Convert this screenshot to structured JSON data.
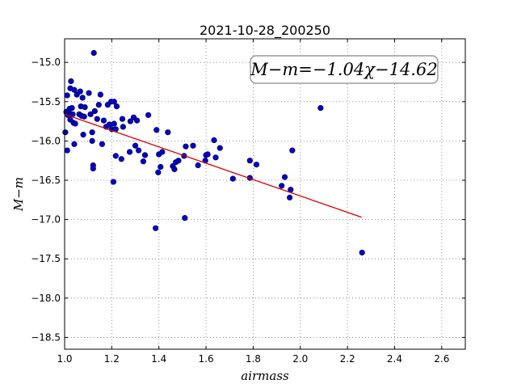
{
  "colors": {
    "points": "#0000cc",
    "fit": "#dd0000",
    "grid": "#777777"
  },
  "chart_data": {
    "type": "scatter",
    "title": "2021-10-28_200250",
    "xlabel": "airmass",
    "ylabel": "M−m",
    "annotation": "M−m=−1.04χ−14.62",
    "xlim": [
      1.0,
      2.7
    ],
    "ylim": [
      -18.65,
      -14.7
    ],
    "y_inverted": true,
    "grid": true,
    "x_ticks": [
      1.0,
      1.2,
      1.4,
      1.6,
      1.8,
      2.0,
      2.2,
      2.4,
      2.6
    ],
    "x_tick_labels": [
      "1.0",
      "1.2",
      "1.4",
      "1.6",
      "1.8",
      "2.0",
      "2.2",
      "2.4",
      "2.6"
    ],
    "y_ticks": [
      -15.0,
      -15.5,
      -16.0,
      -16.5,
      -17.0,
      -17.5,
      -18.0,
      -18.5
    ],
    "y_tick_labels": [
      "−15.0",
      "−15.5",
      "−16.0",
      "−16.5",
      "−17.0",
      "−17.5",
      "−18.0",
      "−18.5"
    ],
    "fit_line": {
      "slope": -1.04,
      "intercept": -14.62,
      "x_range": [
        1.0,
        2.26
      ]
    },
    "points": [
      [
        1.003,
        -15.89
      ],
      [
        1.007,
        -15.63
      ],
      [
        1.011,
        -15.42
      ],
      [
        1.011,
        -16.12
      ],
      [
        1.014,
        -15.67
      ],
      [
        1.017,
        -15.62
      ],
      [
        1.021,
        -15.59
      ],
      [
        1.024,
        -15.33
      ],
      [
        1.024,
        -15.73
      ],
      [
        1.027,
        -15.24
      ],
      [
        1.031,
        -15.58
      ],
      [
        1.034,
        -15.66
      ],
      [
        1.038,
        -15.77
      ],
      [
        1.041,
        -15.35
      ],
      [
        1.041,
        -16.04
      ],
      [
        1.045,
        -15.78
      ],
      [
        1.052,
        -15.41
      ],
      [
        1.062,
        -15.66
      ],
      [
        1.066,
        -15.37
      ],
      [
        1.069,
        -15.56
      ],
      [
        1.072,
        -15.68
      ],
      [
        1.076,
        -15.45
      ],
      [
        1.079,
        -15.92
      ],
      [
        1.083,
        -15.69
      ],
      [
        1.086,
        -15.57
      ],
      [
        1.103,
        -15.39
      ],
      [
        1.11,
        -15.66
      ],
      [
        1.117,
        -15.89
      ],
      [
        1.117,
        -16.0
      ],
      [
        1.121,
        -16.31
      ],
      [
        1.121,
        -16.35
      ],
      [
        1.124,
        -14.88
      ],
      [
        1.128,
        -15.62
      ],
      [
        1.138,
        -15.72
      ],
      [
        1.145,
        -15.54
      ],
      [
        1.152,
        -15.41
      ],
      [
        1.159,
        -16.04
      ],
      [
        1.166,
        -15.74
      ],
      [
        1.176,
        -15.82
      ],
      [
        1.183,
        -15.54
      ],
      [
        1.19,
        -15.79
      ],
      [
        1.197,
        -15.5
      ],
      [
        1.2,
        -15.85
      ],
      [
        1.207,
        -16.52
      ],
      [
        1.21,
        -15.78
      ],
      [
        1.21,
        -15.5
      ],
      [
        1.217,
        -16.19
      ],
      [
        1.217,
        -15.85
      ],
      [
        1.221,
        -15.56
      ],
      [
        1.241,
        -16.23
      ],
      [
        1.245,
        -15.72
      ],
      [
        1.248,
        -15.82
      ],
      [
        1.276,
        -16.14
      ],
      [
        1.279,
        -15.75
      ],
      [
        1.293,
        -15.7
      ],
      [
        1.3,
        -16.06
      ],
      [
        1.307,
        -15.74
      ],
      [
        1.314,
        -16.12
      ],
      [
        1.334,
        -16.26
      ],
      [
        1.341,
        -16.18
      ],
      [
        1.355,
        -15.67
      ],
      [
        1.386,
        -17.11
      ],
      [
        1.39,
        -15.86
      ],
      [
        1.397,
        -16.4
      ],
      [
        1.4,
        -16.17
      ],
      [
        1.407,
        -16.33
      ],
      [
        1.414,
        -16.14
      ],
      [
        1.438,
        -15.89
      ],
      [
        1.459,
        -16.32
      ],
      [
        1.466,
        -16.36
      ],
      [
        1.472,
        -16.27
      ],
      [
        1.483,
        -16.25
      ],
      [
        1.507,
        -16.19
      ],
      [
        1.51,
        -16.98
      ],
      [
        1.514,
        -16.07
      ],
      [
        1.545,
        -16.06
      ],
      [
        1.566,
        -16.31
      ],
      [
        1.597,
        -16.25
      ],
      [
        1.6,
        -16.18
      ],
      [
        1.607,
        -16.17
      ],
      [
        1.634,
        -15.99
      ],
      [
        1.641,
        -16.21
      ],
      [
        1.659,
        -16.09
      ],
      [
        1.714,
        -16.48
      ],
      [
        1.786,
        -16.25
      ],
      [
        1.786,
        -16.47
      ],
      [
        1.814,
        -16.3
      ],
      [
        1.921,
        -16.57
      ],
      [
        1.934,
        -16.46
      ],
      [
        1.955,
        -16.72
      ],
      [
        1.959,
        -16.62
      ],
      [
        1.966,
        -16.12
      ],
      [
        2.086,
        -15.58
      ],
      [
        2.262,
        -17.42
      ]
    ]
  }
}
